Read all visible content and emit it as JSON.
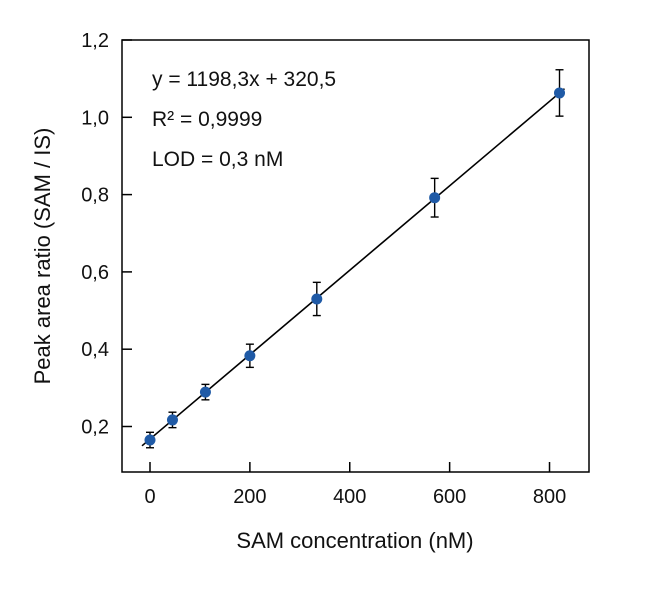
{
  "chart_data": {
    "type": "scatter",
    "title": "",
    "xlabel": "SAM concentration (nM)",
    "ylabel": "Peak area ratio (SAM / IS)",
    "xlim": [
      -55,
      880
    ],
    "ylim": [
      0.08,
      1.2
    ],
    "xticks": [
      0,
      200,
      400,
      600,
      800
    ],
    "xtick_labels": [
      "0",
      "200",
      "400",
      "600",
      "800"
    ],
    "yticks": [
      0.2,
      0.4,
      0.6,
      0.8,
      1.0,
      1.2
    ],
    "ytick_labels": [
      "0,2",
      "0,4",
      "0,6",
      "0,8",
      "1,0",
      "1,2"
    ],
    "grid": false,
    "points": {
      "x": [
        0,
        45,
        111,
        200,
        334,
        570,
        820
      ],
      "y": [
        0.165,
        0.217,
        0.289,
        0.383,
        0.53,
        0.792,
        1.063
      ],
      "error": [
        0.02,
        0.02,
        0.02,
        0.03,
        0.043,
        0.05,
        0.06
      ],
      "color": "#1f5aa6"
    },
    "fit_line": {
      "x": [
        -16,
        830
      ],
      "y": [
        0.15,
        1.074
      ],
      "color": "#000000"
    },
    "annotations": [
      "y = 1198,3x + 320,5",
      "R² = 0,9999",
      "LOD = 0,3  nM"
    ]
  }
}
